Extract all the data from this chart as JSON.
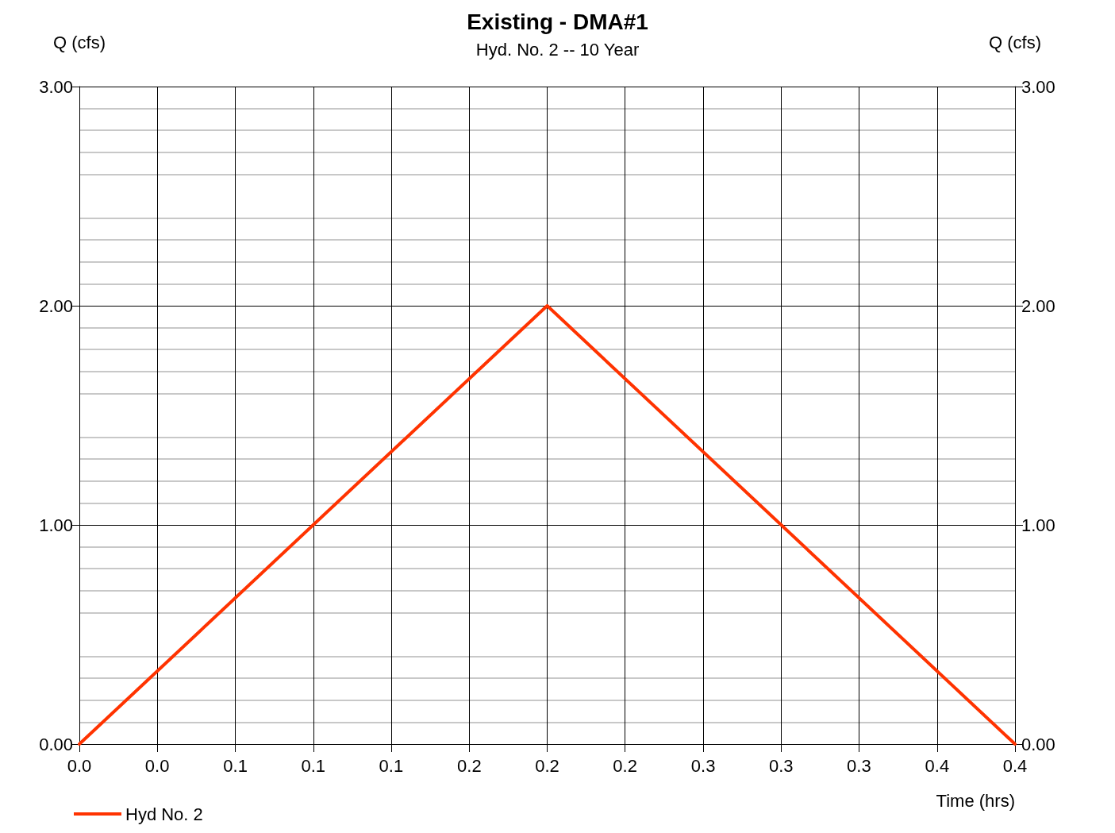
{
  "chart_data": {
    "type": "line",
    "title": "Existing - DMA#1",
    "subtitle": "Hyd. No. 2 -- 10 Year",
    "xlabel": "Time (hrs)",
    "ylabel": "Q (cfs)",
    "y2label": "Q (cfs)",
    "x": [
      0,
      0.2,
      0.4
    ],
    "series": [
      {
        "name": "Hyd No. 2",
        "color": "#ff3300",
        "values": [
          0,
          2,
          0
        ]
      }
    ],
    "xlim": [
      0,
      0.4
    ],
    "xticks": [
      {
        "value": 0,
        "label": "0.0"
      },
      {
        "value": 0.0333,
        "label": "0.0"
      },
      {
        "value": 0.0667,
        "label": "0.1"
      },
      {
        "value": 0.1,
        "label": "0.1"
      },
      {
        "value": 0.1333,
        "label": "0.1"
      },
      {
        "value": 0.1667,
        "label": "0.2"
      },
      {
        "value": 0.2,
        "label": "0.2"
      },
      {
        "value": 0.2333,
        "label": "0.2"
      },
      {
        "value": 0.2667,
        "label": "0.3"
      },
      {
        "value": 0.3,
        "label": "0.3"
      },
      {
        "value": 0.3333,
        "label": "0.3"
      },
      {
        "value": 0.3667,
        "label": "0.4"
      },
      {
        "value": 0.4,
        "label": "0.4"
      }
    ],
    "ylim": [
      0,
      3
    ],
    "yticks": [
      {
        "value": 0,
        "label": "0.00"
      },
      {
        "value": 1,
        "label": "1.00"
      },
      {
        "value": 2,
        "label": "2.00"
      },
      {
        "value": 3,
        "label": "3.00"
      }
    ],
    "y2lim": [
      0,
      3
    ],
    "y2ticks": [
      {
        "value": 0,
        "label": "0.00"
      },
      {
        "value": 1,
        "label": "1.00"
      },
      {
        "value": 2,
        "label": "2.00"
      },
      {
        "value": 3,
        "label": "3.00"
      }
    ],
    "grid": true,
    "legend": "bottom left",
    "marker": "none",
    "line_style": "solid"
  }
}
